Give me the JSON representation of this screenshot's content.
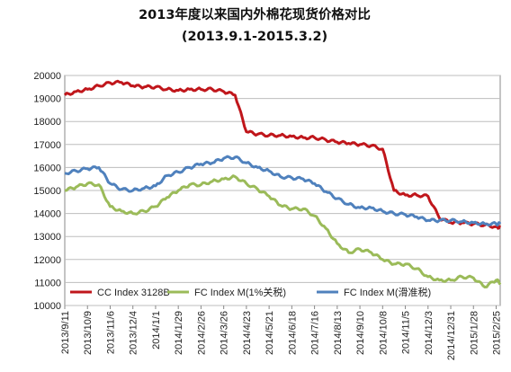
{
  "chart_data": {
    "type": "line",
    "title": "2013年度以来国内外棉花现货价格对比",
    "subtitle": "(2013.9.1-2015.3.2)",
    "xlabel": "",
    "ylabel": "",
    "ylim": [
      10000,
      20000
    ],
    "yticks": [
      10000,
      11000,
      12000,
      13000,
      14000,
      15000,
      16000,
      17000,
      18000,
      19000,
      20000
    ],
    "grid": true,
    "legend_position": "bottom-inside",
    "x_tick_labels": [
      "2013/9/11",
      "2013/10/9",
      "2013/11/6",
      "2013/12/4",
      "2014/1/1",
      "2014/1/29",
      "2014/2/26",
      "2014/3/26",
      "2014/4/23",
      "2014/5/21",
      "2014/6/18",
      "2014/7/16",
      "2014/8/13",
      "2014/9/10",
      "2014/10/8",
      "2014/11/5",
      "2014/12/3",
      "2014/12/31",
      "2015/1/28",
      "2015/2/25"
    ],
    "x": [
      "2013-09-11",
      "2013-09-25",
      "2013-10-09",
      "2013-10-23",
      "2013-11-06",
      "2013-11-20",
      "2013-12-04",
      "2013-12-18",
      "2014-01-01",
      "2014-01-15",
      "2014-01-29",
      "2014-02-12",
      "2014-02-26",
      "2014-03-12",
      "2014-03-26",
      "2014-04-09",
      "2014-04-23",
      "2014-05-07",
      "2014-05-21",
      "2014-06-04",
      "2014-06-18",
      "2014-07-02",
      "2014-07-16",
      "2014-07-30",
      "2014-08-13",
      "2014-08-27",
      "2014-09-10",
      "2014-09-24",
      "2014-10-08",
      "2014-10-22",
      "2014-11-05",
      "2014-11-19",
      "2014-12-03",
      "2014-12-17",
      "2014-12-31",
      "2015-01-14",
      "2015-01-28",
      "2015-02-11",
      "2015-02-25",
      "2015-03-02"
    ],
    "series": [
      {
        "name": "CC Index 3128B",
        "color": "#c0161b",
        "values": [
          19150,
          19300,
          19400,
          19550,
          19680,
          19700,
          19550,
          19500,
          19500,
          19400,
          19350,
          19400,
          19400,
          19400,
          19300,
          19150,
          17550,
          17450,
          17400,
          17400,
          17350,
          17300,
          17300,
          17200,
          17100,
          17050,
          17000,
          16950,
          16800,
          15000,
          14800,
          14800,
          14750,
          13800,
          13600,
          13600,
          13550,
          13500,
          13420,
          13400
        ]
      },
      {
        "name": "FC Index M(1%关税)",
        "color": "#9bbb59",
        "values": [
          15000,
          15150,
          15300,
          15250,
          14300,
          14100,
          14000,
          14100,
          14300,
          14700,
          15000,
          15250,
          15250,
          15400,
          15500,
          15600,
          15300,
          15050,
          14750,
          14350,
          14200,
          14200,
          13900,
          13350,
          12700,
          12300,
          12450,
          12300,
          12000,
          11800,
          11800,
          11600,
          11250,
          11100,
          11100,
          11250,
          11200,
          10800,
          11100,
          11000
        ]
      },
      {
        "name": "FC Index M(滑准税)",
        "color": "#4f81bd",
        "values": [
          15750,
          15850,
          15950,
          16000,
          15300,
          15050,
          15000,
          15100,
          15200,
          15650,
          15800,
          16000,
          16150,
          16200,
          16400,
          16450,
          16200,
          16000,
          15850,
          15600,
          15550,
          15500,
          15300,
          14950,
          14650,
          14400,
          14250,
          14250,
          14100,
          14000,
          13950,
          13850,
          13700,
          13700,
          13700,
          13650,
          13600,
          13550,
          13550,
          13550
        ]
      }
    ]
  }
}
